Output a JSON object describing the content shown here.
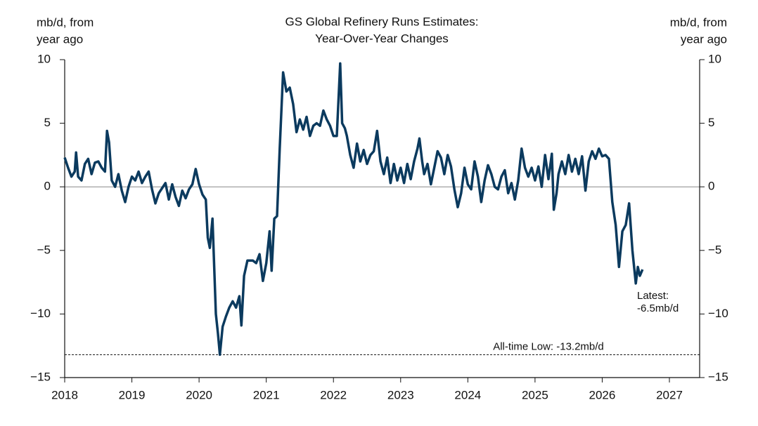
{
  "chart_data": {
    "type": "line",
    "title": [
      "GS Global Refinery Runs Estimates:",
      "Year-Over-Year Changes"
    ],
    "ylabel": [
      "mb/d, from",
      "year ago"
    ],
    "y2label": [
      "mb/d, from",
      "year ago"
    ],
    "xlim": [
      2018,
      2027.45
    ],
    "xticks": [
      2018,
      2019,
      2020,
      2021,
      2022,
      2023,
      2024,
      2025,
      2026,
      2027
    ],
    "ylim": [
      -15,
      10
    ],
    "yticks": [
      {
        "value": -15,
        "label": "−15"
      },
      {
        "value": -10,
        "label": "−10"
      },
      {
        "value": -5,
        "label": "−5"
      },
      0,
      5,
      10
    ],
    "y2lim": [
      -15,
      10
    ],
    "y2ticks": [
      {
        "value": -15,
        "label": "−15"
      },
      {
        "value": -10,
        "label": "−10"
      },
      {
        "value": -5,
        "label": "−5"
      },
      0,
      5,
      10
    ],
    "reference_line": {
      "value": -13.2,
      "label": "All-time Low: -13.2mb/d"
    },
    "annotation": [
      "Latest:",
      "-6.5mb/d"
    ],
    "series": [
      {
        "name": "GS Global Refinery Runs",
        "color": "#0b3a5e",
        "x": [
          2018.0,
          2018.05,
          2018.1,
          2018.15,
          2018.17,
          2018.2,
          2018.25,
          2018.3,
          2018.35,
          2018.4,
          2018.45,
          2018.5,
          2018.55,
          2018.6,
          2018.63,
          2018.66,
          2018.7,
          2018.75,
          2018.8,
          2018.85,
          2018.9,
          2018.95,
          2019.0,
          2019.05,
          2019.1,
          2019.15,
          2019.2,
          2019.25,
          2019.3,
          2019.35,
          2019.4,
          2019.45,
          2019.5,
          2019.55,
          2019.6,
          2019.65,
          2019.7,
          2019.75,
          2019.8,
          2019.85,
          2019.9,
          2019.95,
          2020.0,
          2020.05,
          2020.1,
          2020.13,
          2020.16,
          2020.2,
          2020.25,
          2020.28,
          2020.31,
          2020.35,
          2020.4,
          2020.45,
          2020.5,
          2020.55,
          2020.6,
          2020.63,
          2020.67,
          2020.72,
          2020.8,
          2020.85,
          2020.9,
          2020.95,
          2021.0,
          2021.05,
          2021.08,
          2021.12,
          2021.16,
          2021.2,
          2021.25,
          2021.3,
          2021.35,
          2021.4,
          2021.45,
          2021.5,
          2021.55,
          2021.6,
          2021.65,
          2021.7,
          2021.75,
          2021.8,
          2021.85,
          2021.9,
          2021.95,
          2022.0,
          2022.05,
          2022.1,
          2022.13,
          2022.17,
          2022.2,
          2022.25,
          2022.3,
          2022.35,
          2022.4,
          2022.45,
          2022.5,
          2022.55,
          2022.6,
          2022.65,
          2022.7,
          2022.75,
          2022.8,
          2022.85,
          2022.9,
          2022.95,
          2023.0,
          2023.05,
          2023.1,
          2023.15,
          2023.2,
          2023.25,
          2023.28,
          2023.32,
          2023.35,
          2023.4,
          2023.45,
          2023.5,
          2023.55,
          2023.6,
          2023.65,
          2023.7,
          2023.75,
          2023.8,
          2023.85,
          2023.9,
          2023.95,
          2024.0,
          2024.05,
          2024.1,
          2024.15,
          2024.2,
          2024.25,
          2024.3,
          2024.35,
          2024.4,
          2024.45,
          2024.5,
          2024.55,
          2024.6,
          2024.65,
          2024.7,
          2024.75,
          2024.8,
          2024.85,
          2024.9,
          2024.95,
          2025.0,
          2025.05,
          2025.1,
          2025.15,
          2025.2,
          2025.25,
          2025.28,
          2025.32,
          2025.35,
          2025.4,
          2025.45,
          2025.5,
          2025.55,
          2025.6,
          2025.65,
          2025.7,
          2025.75,
          2025.8,
          2025.85,
          2025.9,
          2025.95,
          2026.0,
          2026.05,
          2026.1,
          2026.15,
          2026.2,
          2026.25,
          2026.3,
          2026.35,
          2026.4,
          2026.45,
          2026.5,
          2026.53,
          2026.56,
          2026.6
        ],
        "values": [
          2.3,
          1.5,
          0.8,
          1.2,
          2.7,
          0.8,
          0.5,
          1.8,
          2.2,
          1.0,
          1.9,
          2.0,
          1.5,
          1.2,
          4.4,
          3.5,
          0.5,
          0.0,
          1.0,
          -0.3,
          -1.2,
          0.0,
          0.8,
          0.5,
          1.2,
          0.3,
          0.8,
          1.2,
          -0.2,
          -1.3,
          -0.5,
          -0.1,
          0.3,
          -1.0,
          0.2,
          -0.8,
          -1.5,
          -0.3,
          -0.9,
          -0.2,
          0.2,
          1.4,
          0.2,
          -0.6,
          -1.0,
          -4.0,
          -4.8,
          -2.5,
          -10.0,
          -11.5,
          -13.2,
          -11.0,
          -10.2,
          -9.5,
          -9.0,
          -9.5,
          -8.6,
          -10.9,
          -7.0,
          -5.8,
          -5.8,
          -6.0,
          -5.3,
          -7.4,
          -6.0,
          -3.5,
          -6.6,
          -2.5,
          -2.3,
          3.0,
          9.0,
          7.5,
          7.8,
          6.5,
          4.3,
          5.3,
          4.5,
          5.5,
          4.0,
          4.8,
          5.0,
          4.8,
          6.0,
          5.3,
          4.8,
          4.0,
          4.0,
          9.7,
          5.0,
          4.6,
          4.0,
          2.5,
          1.5,
          3.4,
          2.0,
          2.9,
          1.8,
          2.5,
          2.8,
          4.4,
          2.0,
          1.0,
          2.3,
          0.3,
          1.8,
          0.5,
          1.5,
          0.3,
          1.8,
          0.6,
          2.0,
          3.0,
          3.8,
          2.0,
          1.0,
          1.8,
          0.2,
          1.5,
          2.8,
          2.3,
          1.0,
          2.5,
          1.6,
          -0.2,
          -1.6,
          -0.5,
          1.5,
          0.2,
          -0.2,
          2.0,
          0.8,
          -1.2,
          0.5,
          1.7,
          1.0,
          0.0,
          -0.2,
          0.8,
          1.3,
          -0.5,
          0.3,
          -1.0,
          0.5,
          3.0,
          1.5,
          0.8,
          1.5,
          0.5,
          1.6,
          0.0,
          2.5,
          0.6,
          2.6,
          -1.8,
          -0.5,
          1.0,
          2.0,
          1.0,
          2.5,
          1.2,
          2.2,
          1.0,
          2.4,
          -0.3,
          2.0,
          2.8,
          2.2,
          3.0,
          2.4,
          2.5,
          2.2,
          -1.2,
          -3.0,
          -6.3,
          -3.5,
          -3.0,
          -1.3,
          -5.0,
          -7.6,
          -6.3,
          -7.0,
          -6.5
        ]
      }
    ]
  }
}
